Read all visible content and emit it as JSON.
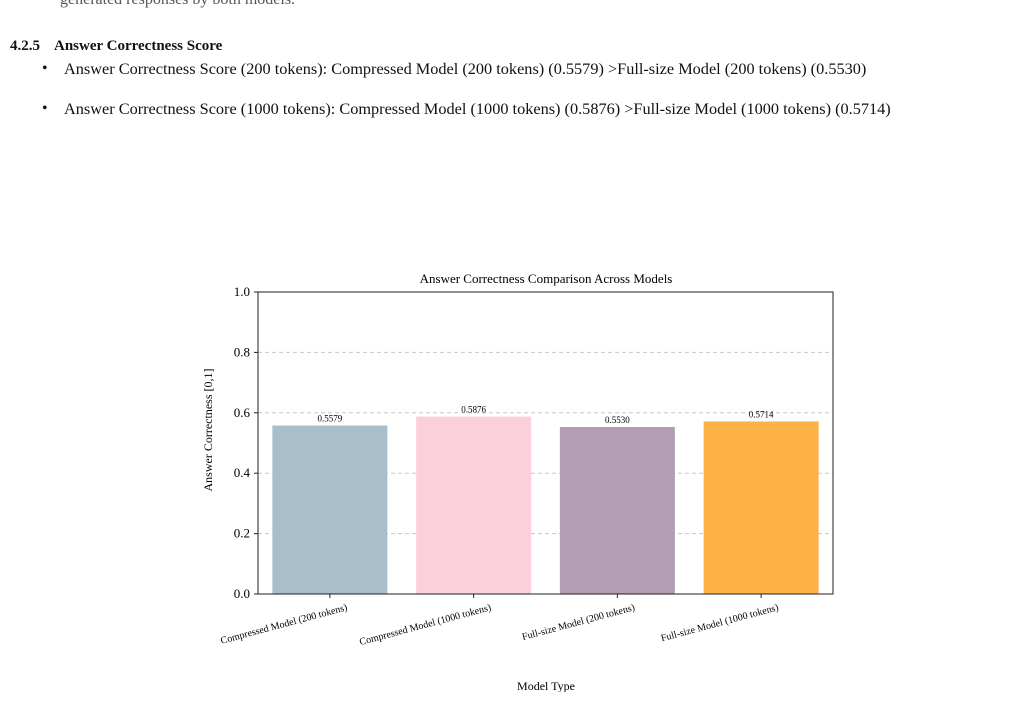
{
  "page": {
    "top_line": "generated responses by both models.",
    "section_number": "4.2.5",
    "section_title": "Answer Correctness Score",
    "bullets": [
      "Answer Correctness Score (200 tokens): Compressed Model (200 tokens) (0.5579) >Full-size Model (200 tokens) (0.5530)",
      "Answer Correctness Score (1000 tokens): Compressed Model (1000 tokens) (0.5876) >Full-size Model (1000 tokens) (0.5714)"
    ]
  },
  "chart_data": {
    "type": "bar",
    "title": "Answer Correctness Comparison Across Models",
    "xlabel": "Model Type",
    "ylabel": "Answer Correctness [0,1]",
    "categories": [
      "Compressed Model (200 tokens)",
      "Compressed Model (1000 tokens)",
      "Full-size Model (200 tokens)",
      "Full-size Model (1000 tokens)"
    ],
    "values": [
      0.5579,
      0.5876,
      0.553,
      0.5714
    ],
    "value_labels": [
      "0.5579",
      "0.5876",
      "0.5530",
      "0.5714"
    ],
    "colors": [
      "#a8bfc9",
      "#fccfdc",
      "#b39db3",
      "#fdb245"
    ],
    "ylim": [
      0,
      1.0
    ],
    "yticks": [
      "0.0",
      "0.2",
      "0.4",
      "0.6",
      "0.8",
      "1.0"
    ],
    "grid": "horizontal dashed",
    "legend": "none"
  }
}
